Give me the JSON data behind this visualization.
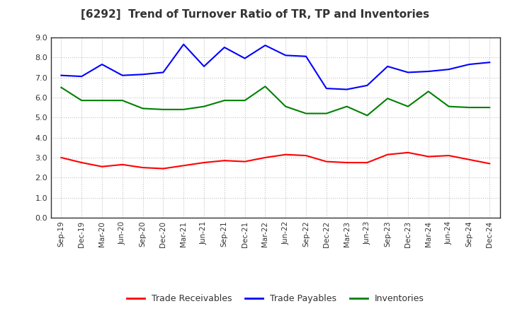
{
  "title": "[6292]  Trend of Turnover Ratio of TR, TP and Inventories",
  "x_labels": [
    "Sep-19",
    "Dec-19",
    "Mar-20",
    "Jun-20",
    "Sep-20",
    "Dec-20",
    "Mar-21",
    "Jun-21",
    "Sep-21",
    "Dec-21",
    "Mar-22",
    "Jun-22",
    "Sep-22",
    "Dec-22",
    "Mar-23",
    "Jun-23",
    "Sep-23",
    "Dec-23",
    "Mar-24",
    "Jun-24",
    "Sep-24",
    "Dec-24"
  ],
  "trade_receivables": [
    3.0,
    2.75,
    2.55,
    2.65,
    2.5,
    2.45,
    2.6,
    2.75,
    2.85,
    2.8,
    3.0,
    3.15,
    3.1,
    2.8,
    2.75,
    2.75,
    3.15,
    3.25,
    3.05,
    3.1,
    2.9,
    2.7
  ],
  "trade_payables": [
    7.1,
    7.05,
    7.65,
    7.1,
    7.15,
    7.25,
    8.65,
    7.55,
    8.5,
    7.95,
    8.6,
    8.1,
    8.05,
    6.45,
    6.4,
    6.6,
    7.55,
    7.25,
    7.3,
    7.4,
    7.65,
    7.75
  ],
  "inventories": [
    6.5,
    5.85,
    5.85,
    5.85,
    5.45,
    5.4,
    5.4,
    5.55,
    5.85,
    5.85,
    6.55,
    5.55,
    5.2,
    5.2,
    5.55,
    5.1,
    5.95,
    5.55,
    6.3,
    5.55,
    5.5,
    5.5
  ],
  "ylim": [
    0.0,
    9.0
  ],
  "yticks": [
    0.0,
    1.0,
    2.0,
    3.0,
    4.0,
    5.0,
    6.0,
    7.0,
    8.0,
    9.0
  ],
  "line_colors": {
    "trade_receivables": "#ff0000",
    "trade_payables": "#0000ff",
    "inventories": "#008000"
  },
  "legend_labels": [
    "Trade Receivables",
    "Trade Payables",
    "Inventories"
  ],
  "background_color": "#ffffff",
  "grid_color": "#999999",
  "title_color": "#333333"
}
